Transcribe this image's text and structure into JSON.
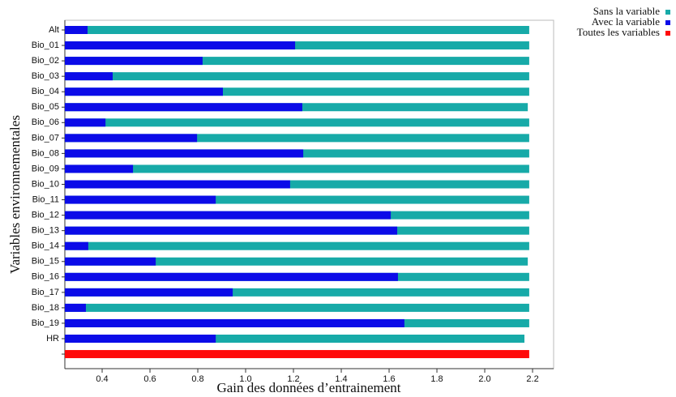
{
  "chart_data": {
    "type": "bar",
    "orientation": "horizontal",
    "xlabel": "Gain des données d’entrainement",
    "ylabel": "Variables environnementales",
    "categories": [
      "Alt",
      "Bio_01",
      "Bio_02",
      "Bio_03",
      "Bio_04",
      "Bio_05",
      "Bio_06",
      "Bio_07",
      "Bio_08",
      "Bio_09",
      "Bio_10",
      "Bio_11",
      "Bio_12",
      "Bio_13",
      "Bio_14",
      "Bio_15",
      "Bio_16",
      "Bio_17",
      "Bio_18",
      "Bio_19",
      "HR",
      null
    ],
    "series": [
      {
        "name": "Sans la variable",
        "color": "#17aaa8",
        "values": [
          2.186,
          2.186,
          2.186,
          2.186,
          2.186,
          2.18,
          2.186,
          2.186,
          2.186,
          2.186,
          2.186,
          2.186,
          2.186,
          2.186,
          2.186,
          2.18,
          2.186,
          2.186,
          2.186,
          2.186,
          2.166,
          null
        ]
      },
      {
        "name": "Avec la variable",
        "color": "#0b0be8",
        "values": [
          0.339,
          1.207,
          0.82,
          0.444,
          0.905,
          1.237,
          0.414,
          0.797,
          1.241,
          0.529,
          1.186,
          0.875,
          1.607,
          1.634,
          0.342,
          0.624,
          1.637,
          0.946,
          0.332,
          1.664,
          0.875,
          null
        ]
      },
      {
        "name": "Toutes les variables",
        "color": "#ff0a0a",
        "values": [
          null,
          null,
          null,
          null,
          null,
          null,
          null,
          null,
          null,
          null,
          null,
          null,
          null,
          null,
          null,
          null,
          null,
          null,
          null,
          null,
          null,
          2.186
        ]
      }
    ],
    "xlim": [
      0.244,
      2.288
    ],
    "xticks": [
      0.4,
      0.6,
      0.8,
      {
        "value": 1,
        "label": "1.0"
      },
      1.2,
      1.4,
      1.6,
      1.8,
      {
        "value": 2,
        "label": "2.0"
      },
      2.2
    ]
  }
}
